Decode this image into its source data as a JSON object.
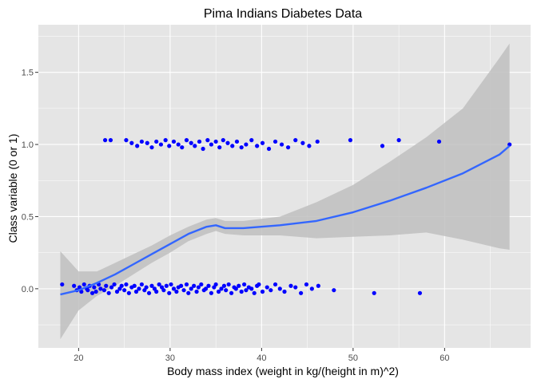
{
  "chart_data": {
    "type": "scatter",
    "title": "Pima Indians Diabetes Data",
    "xlabel": "Body mass index (weight in kg/(height in m)^2)",
    "ylabel": "Class variable (0 or 1)",
    "xlim": [
      15.6,
      69.4
    ],
    "ylim": [
      -0.41,
      1.83
    ],
    "x_ticks": [
      20,
      30,
      40,
      50,
      60
    ],
    "y_ticks": [
      0.0,
      0.5,
      1.0,
      1.5
    ],
    "x_tick_labels": [
      "20",
      "30",
      "40",
      "50",
      "60"
    ],
    "y_tick_labels": [
      "0.0",
      "0.5",
      "1.0",
      "1.5"
    ],
    "grid": true,
    "colors": {
      "panel_background": "#e5e5e5",
      "grid_major": "#ffffff",
      "points": "#0000ff",
      "smooth_line": "#3366ff",
      "confidence_band": "#bfbfbf"
    },
    "point_groups": [
      {
        "y": 0,
        "x": [
          18.2,
          19.5,
          19.8,
          20.1,
          20.3,
          20.6,
          20.9,
          21.0,
          21.2,
          21.5,
          21.7,
          21.9,
          22.2,
          22.4,
          22.8,
          23.0,
          23.3,
          23.6,
          23.9,
          24.2,
          24.5,
          24.7,
          25.0,
          25.2,
          25.5,
          25.8,
          26.1,
          26.3,
          26.6,
          26.9,
          27.2,
          27.4,
          27.7,
          28.0,
          28.3,
          28.5,
          28.8,
          29.1,
          29.3,
          29.6,
          29.9,
          30.1,
          30.4,
          30.7,
          30.9,
          31.2,
          31.5,
          31.8,
          32.0,
          32.3,
          32.6,
          32.9,
          33.1,
          33.4,
          33.7,
          33.9,
          34.2,
          34.5,
          34.8,
          35.0,
          35.3,
          35.6,
          35.9,
          36.1,
          36.4,
          36.7,
          37.0,
          37.2,
          37.5,
          37.8,
          38.1,
          38.3,
          38.6,
          38.9,
          39.2,
          39.5,
          39.7,
          40.1,
          40.6,
          41.0,
          41.5,
          42.0,
          42.5,
          43.2,
          43.7,
          44.3,
          44.9,
          45.5,
          46.2,
          47.9,
          52.3,
          57.3
        ],
        "jitter": [
          0.03,
          0.02,
          -0.01,
          0.01,
          -0.02,
          0.03,
          0.0,
          -0.01,
          0.02,
          -0.03,
          0.01,
          -0.02,
          0.03,
          0.0,
          -0.01,
          0.02,
          -0.03,
          0.01,
          0.03,
          -0.02,
          0.0,
          0.02,
          -0.01,
          0.03,
          -0.03,
          0.01,
          0.02,
          -0.02,
          0.0,
          0.03,
          -0.01,
          0.01,
          -0.03,
          0.02,
          0.0,
          -0.02,
          0.03,
          0.01,
          -0.01,
          0.02,
          -0.03,
          0.03,
          0.0,
          -0.02,
          0.01,
          0.02,
          -0.01,
          0.03,
          -0.03,
          0.0,
          0.02,
          -0.02,
          0.01,
          0.03,
          -0.01,
          0.0,
          0.02,
          -0.03,
          0.01,
          0.03,
          -0.02,
          0.0,
          0.02,
          -0.01,
          0.03,
          -0.03,
          0.01,
          0.0,
          0.02,
          -0.02,
          0.03,
          -0.01,
          0.01,
          0.0,
          -0.03,
          0.02,
          0.03,
          -0.02,
          0.01,
          -0.01,
          0.03,
          0.0,
          -0.02,
          0.02,
          0.01,
          -0.03,
          0.03,
          0.0,
          0.02,
          -0.01,
          -0.03,
          -0.03
        ]
      },
      {
        "y": 1,
        "x": [
          22.9,
          23.5,
          25.2,
          25.8,
          26.4,
          26.9,
          27.5,
          28.0,
          28.5,
          29.0,
          29.5,
          29.9,
          30.4,
          30.9,
          31.3,
          31.8,
          32.3,
          32.7,
          33.2,
          33.6,
          34.1,
          34.5,
          35.0,
          35.4,
          35.8,
          36.3,
          36.8,
          37.3,
          37.8,
          38.3,
          38.9,
          39.5,
          40.1,
          40.8,
          41.5,
          42.2,
          42.9,
          43.7,
          44.5,
          45.2,
          46.1,
          49.7,
          53.2,
          55.0,
          59.4,
          67.1
        ],
        "jitter": [
          0.03,
          0.03,
          0.03,
          0.01,
          -0.01,
          0.02,
          0.01,
          -0.02,
          0.02,
          0.0,
          0.03,
          -0.01,
          0.02,
          0.0,
          -0.02,
          0.03,
          0.01,
          -0.01,
          0.02,
          -0.03,
          0.03,
          0.0,
          0.02,
          -0.02,
          0.03,
          0.01,
          -0.01,
          0.02,
          -0.02,
          0.0,
          0.03,
          -0.01,
          0.01,
          -0.03,
          0.02,
          0.0,
          -0.02,
          0.03,
          0.01,
          -0.01,
          0.02,
          0.03,
          -0.01,
          0.03,
          0.02,
          0.0
        ]
      }
    ],
    "smooth": {
      "x": [
        18.0,
        20.0,
        22.0,
        24.0,
        26.0,
        28.0,
        30.0,
        32.0,
        34.0,
        35.0,
        36.0,
        38.0,
        42.0,
        46.0,
        50.0,
        54.0,
        58.0,
        62.0,
        66.0,
        67.1
      ],
      "y": [
        -0.04,
        -0.01,
        0.04,
        0.1,
        0.17,
        0.24,
        0.31,
        0.38,
        0.43,
        0.44,
        0.42,
        0.42,
        0.44,
        0.47,
        0.53,
        0.61,
        0.7,
        0.8,
        0.93,
        0.99
      ],
      "lower": [
        -0.35,
        -0.15,
        -0.05,
        0.02,
        0.1,
        0.18,
        0.25,
        0.33,
        0.38,
        0.4,
        0.38,
        0.37,
        0.37,
        0.35,
        0.36,
        0.37,
        0.39,
        0.34,
        0.28,
        0.27
      ],
      "upper": [
        0.26,
        0.12,
        0.12,
        0.18,
        0.24,
        0.3,
        0.37,
        0.43,
        0.48,
        0.49,
        0.47,
        0.47,
        0.5,
        0.6,
        0.72,
        0.88,
        1.05,
        1.25,
        1.6,
        1.7
      ]
    }
  }
}
